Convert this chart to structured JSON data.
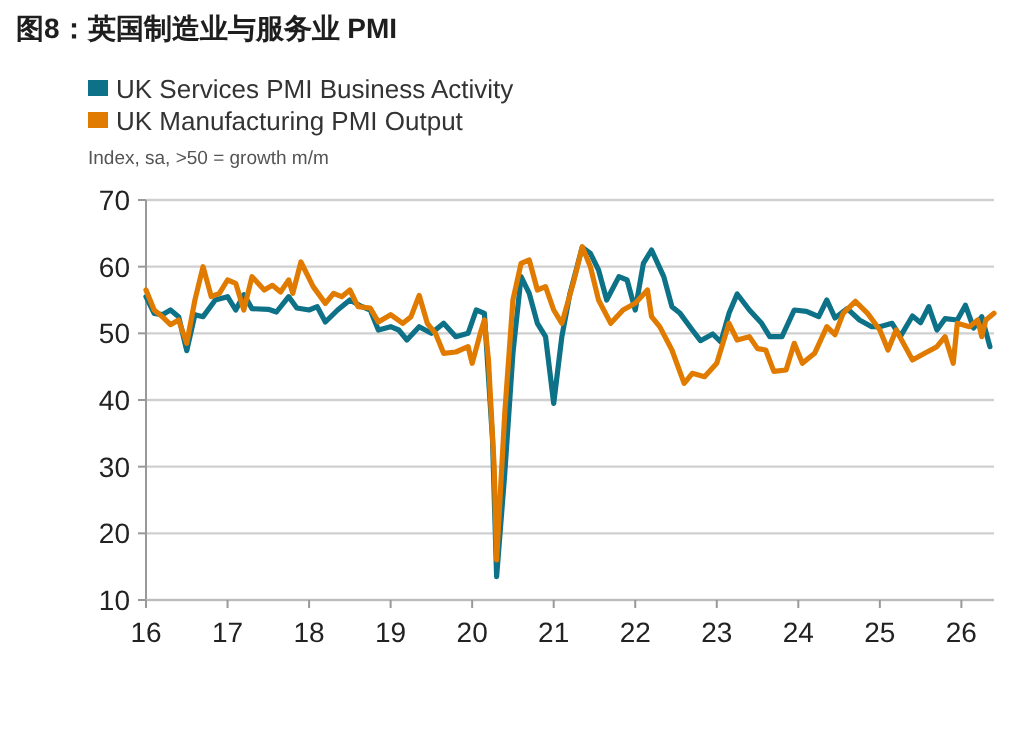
{
  "chart_data": {
    "type": "line",
    "title": "图8：英国制造业与服务业 PMI",
    "subtitle": "Index, sa, >50 = growth m/m",
    "xlim": [
      2016,
      2026.4
    ],
    "xticks": [
      {
        "value": 2016,
        "label": "16"
      },
      {
        "value": 2017,
        "label": "17"
      },
      {
        "value": 2018,
        "label": "18"
      },
      {
        "value": 2019,
        "label": "19"
      },
      {
        "value": 2020,
        "label": "20"
      },
      {
        "value": 2021,
        "label": "21"
      },
      {
        "value": 2022,
        "label": "22"
      },
      {
        "value": 2023,
        "label": "23"
      },
      {
        "value": 2024,
        "label": "24"
      },
      {
        "value": 2025,
        "label": "25"
      },
      {
        "value": 2026,
        "label": "26"
      }
    ],
    "ylim": [
      10,
      70
    ],
    "yticks": [
      10,
      20,
      30,
      40,
      50,
      60,
      70
    ],
    "grid": "y",
    "legend": "top left",
    "series": [
      {
        "name": "UK Services PMI Business Activity",
        "color": "#0d7287",
        "x": [
          2016.0,
          2016.1,
          2016.2,
          2016.3,
          2016.4,
          2016.5,
          2016.6,
          2016.7,
          2016.85,
          2017.0,
          2017.1,
          2017.2,
          2017.3,
          2017.5,
          2017.6,
          2017.75,
          2017.85,
          2018.0,
          2018.1,
          2018.2,
          2018.35,
          2018.5,
          2018.65,
          2018.75,
          2018.85,
          2019.0,
          2019.1,
          2019.2,
          2019.35,
          2019.5,
          2019.65,
          2019.8,
          2019.95,
          2020.05,
          2020.15,
          2020.25,
          2020.3,
          2020.4,
          2020.5,
          2020.6,
          2020.7,
          2020.8,
          2020.9,
          2021.0,
          2021.1,
          2021.2,
          2021.35,
          2021.45,
          2021.55,
          2021.65,
          2021.8,
          2021.9,
          2022.0,
          2022.1,
          2022.2,
          2022.35,
          2022.45,
          2022.55,
          2022.7,
          2022.8,
          2022.95,
          2023.05,
          2023.15,
          2023.25,
          2023.4,
          2023.55,
          2023.65,
          2023.8,
          2023.95,
          2024.1,
          2024.25,
          2024.35,
          2024.45,
          2024.6,
          2024.75,
          2024.9,
          2025.0,
          2025.15,
          2025.25,
          2025.4,
          2025.5,
          2025.6,
          2025.7,
          2025.8,
          2025.95,
          2026.05,
          2026.15,
          2026.25,
          2026.35
        ],
        "values": [
          55.5,
          53,
          52.8,
          53.5,
          52.5,
          47.4,
          52.8,
          52.5,
          55,
          55.5,
          53.5,
          55.8,
          53.7,
          53.6,
          53.2,
          55.5,
          53.8,
          53.5,
          54,
          51.7,
          53.5,
          55,
          54,
          53.5,
          50.5,
          51,
          50.5,
          49,
          51,
          50,
          51.5,
          49.5,
          50,
          53.5,
          53,
          34,
          13.5,
          29,
          47,
          58.5,
          56,
          51.5,
          49.5,
          39.5,
          49.5,
          56,
          62.9,
          62,
          59.5,
          55,
          58.5,
          58,
          53.5,
          60.5,
          62.5,
          58.5,
          54,
          53,
          50.5,
          48.9,
          49.9,
          48.7,
          53,
          55.9,
          53.5,
          51.5,
          49.5,
          49.5,
          53.5,
          53.3,
          52.5,
          55,
          52.3,
          53.7,
          52,
          51,
          51,
          51.5,
          49.5,
          52.6,
          51.6,
          54,
          50.5,
          52.2,
          52,
          54.2,
          50.8,
          52.5,
          48
        ]
      },
      {
        "name": "UK Manufacturing PMI Output",
        "color": "#e07b00",
        "x": [
          2016.0,
          2016.1,
          2016.2,
          2016.3,
          2016.4,
          2016.5,
          2016.6,
          2016.7,
          2016.8,
          2016.9,
          2017.0,
          2017.1,
          2017.2,
          2017.3,
          2017.45,
          2017.55,
          2017.65,
          2017.75,
          2017.8,
          2017.9,
          2018.05,
          2018.2,
          2018.3,
          2018.4,
          2018.5,
          2018.6,
          2018.75,
          2018.85,
          2019.0,
          2019.15,
          2019.25,
          2019.35,
          2019.45,
          2019.55,
          2019.65,
          2019.8,
          2019.95,
          2020.0,
          2020.1,
          2020.15,
          2020.2,
          2020.27,
          2020.3,
          2020.4,
          2020.5,
          2020.6,
          2020.7,
          2020.8,
          2020.9,
          2021.0,
          2021.1,
          2021.25,
          2021.35,
          2021.45,
          2021.55,
          2021.7,
          2021.85,
          2022.0,
          2022.15,
          2022.2,
          2022.3,
          2022.45,
          2022.6,
          2022.7,
          2022.85,
          2023.0,
          2023.15,
          2023.25,
          2023.4,
          2023.5,
          2023.6,
          2023.7,
          2023.85,
          2023.95,
          2024.05,
          2024.2,
          2024.35,
          2024.45,
          2024.55,
          2024.7,
          2024.85,
          2025.0,
          2025.1,
          2025.2,
          2025.4,
          2025.55,
          2025.7,
          2025.8,
          2025.9,
          2025.95,
          2026.1,
          2026.2,
          2026.25,
          2026.3,
          2026.4
        ],
        "values": [
          56.5,
          53.5,
          52.5,
          51.3,
          52,
          48.5,
          55,
          60,
          55.5,
          56,
          58,
          57.5,
          53.5,
          58.5,
          56.5,
          57.2,
          56.2,
          58,
          56,
          60.7,
          57,
          54.5,
          56,
          55.5,
          56.5,
          54,
          53.8,
          51.7,
          52.8,
          51.5,
          52.5,
          55.7,
          51.5,
          50,
          47,
          47.2,
          48,
          45.5,
          50,
          52,
          46,
          30,
          16,
          38,
          55,
          60.5,
          61,
          56.5,
          57,
          53.5,
          51.5,
          58,
          63,
          60,
          55,
          51.5,
          53.5,
          54.5,
          56.5,
          52.5,
          51,
          47.5,
          42.5,
          44,
          43.5,
          45.5,
          51.5,
          49,
          49.5,
          47.7,
          47.5,
          44.3,
          44.5,
          48.5,
          45.5,
          47,
          51,
          49.8,
          53,
          54.8,
          53,
          50.5,
          47.5,
          50.5,
          46,
          47,
          48,
          49.5,
          45.5,
          51.5,
          51,
          52,
          49.5,
          52,
          53
        ]
      }
    ]
  }
}
